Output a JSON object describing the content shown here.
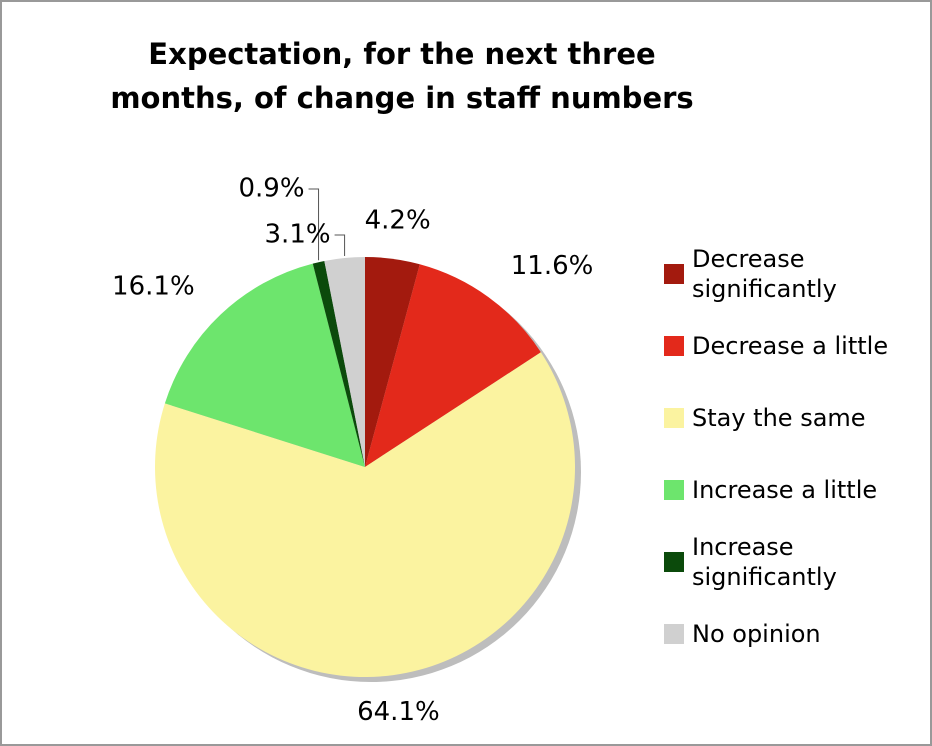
{
  "chart_data": {
    "type": "pie",
    "title": "Expectation, for the next three months, of change in staff numbers",
    "categories": [
      "Decrease significantly",
      "Decrease a little",
      "Stay the same",
      "Increase a little",
      "Increase significantly",
      "No opinion"
    ],
    "values": [
      4.2,
      11.6,
      64.1,
      16.1,
      0.9,
      3.1
    ],
    "value_labels": [
      "4.2%",
      "11.6%",
      "64.1%",
      "16.1%",
      "0.9%",
      "3.1%"
    ],
    "colors": [
      "#a31a0e",
      "#e3291b",
      "#fbf3a0",
      "#6de56d",
      "#0b4a0b",
      "#d0d0d0"
    ],
    "legend": "right"
  }
}
